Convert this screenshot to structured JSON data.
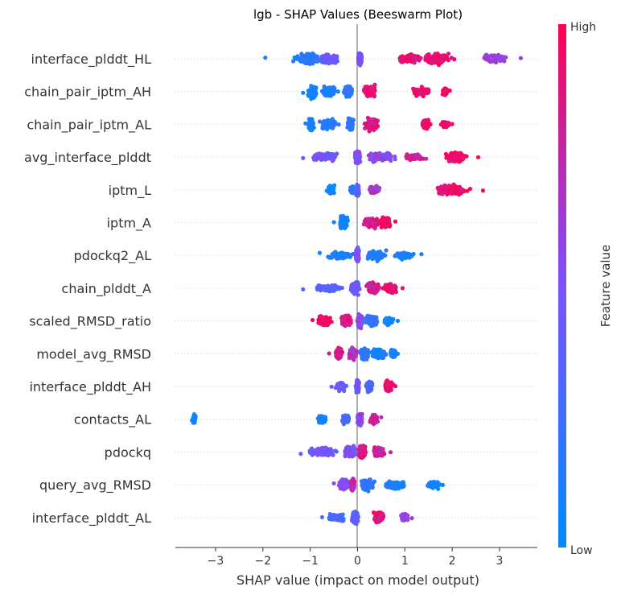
{
  "chart_data": {
    "type": "scatter",
    "subtype": "beeswarm",
    "title": "lgb - SHAP Values (Beeswarm Plot)",
    "xlabel": "SHAP value (impact on model output)",
    "ylabel": "",
    "xlim": [
      -3.85,
      3.8
    ],
    "xticks": [
      -3,
      -2,
      -1,
      0,
      1,
      2,
      3
    ],
    "grid": false,
    "colorbar": {
      "label": "Feature value",
      "high_label": "High",
      "low_label": "Low",
      "low_color": "#008bfb",
      "mid_color": "#7c52ff",
      "high_color": "#ff0052"
    },
    "features": [
      {
        "name": "interface_plddt_HL",
        "min": -1.95,
        "max": 3.45,
        "clusters": [
          [
            -1.05,
            0.35,
            0.85,
            0.15
          ],
          [
            -0.6,
            0.3,
            0.6,
            0.4
          ],
          [
            0.05,
            0.06,
            1.0,
            0.5
          ],
          [
            1.1,
            0.35,
            0.5,
            0.9
          ],
          [
            1.7,
            0.45,
            0.7,
            0.95
          ],
          [
            2.9,
            0.35,
            0.45,
            0.6
          ]
        ]
      },
      {
        "name": "chain_pair_iptm_AH",
        "min": -1.15,
        "max": 1.95,
        "clusters": [
          [
            -0.95,
            0.12,
            1.0,
            0.05
          ],
          [
            -0.6,
            0.25,
            0.6,
            0.1
          ],
          [
            -0.2,
            0.12,
            0.9,
            0.2
          ],
          [
            0.25,
            0.18,
            0.8,
            0.9
          ],
          [
            1.35,
            0.25,
            0.5,
            0.95
          ],
          [
            1.85,
            0.08,
            0.3,
            0.95
          ]
        ]
      },
      {
        "name": "chain_pair_iptm_AL",
        "min": -1.1,
        "max": 2.0,
        "clusters": [
          [
            -0.98,
            0.08,
            1.0,
            0.05
          ],
          [
            -0.6,
            0.3,
            0.6,
            0.15
          ],
          [
            -0.15,
            0.08,
            0.95,
            0.2
          ],
          [
            0.3,
            0.2,
            0.9,
            0.85
          ],
          [
            1.45,
            0.12,
            0.6,
            0.95
          ],
          [
            1.85,
            0.12,
            0.3,
            0.95
          ]
        ]
      },
      {
        "name": "avg_interface_plddt",
        "min": -1.15,
        "max": 2.55,
        "clusters": [
          [
            -0.7,
            0.4,
            0.55,
            0.45
          ],
          [
            0.0,
            0.08,
            1.0,
            0.5
          ],
          [
            0.5,
            0.4,
            0.5,
            0.55
          ],
          [
            1.2,
            0.4,
            0.3,
            0.8
          ],
          [
            2.1,
            0.35,
            0.7,
            0.95
          ]
        ]
      },
      {
        "name": "iptm_L",
        "min": -0.65,
        "max": 2.65,
        "clusters": [
          [
            -0.55,
            0.1,
            0.5,
            0.05
          ],
          [
            -0.1,
            0.08,
            0.4,
            0.1
          ],
          [
            0.0,
            0.05,
            0.8,
            0.4
          ],
          [
            0.35,
            0.18,
            0.4,
            0.7
          ],
          [
            2.0,
            0.5,
            0.75,
            0.95
          ]
        ]
      },
      {
        "name": "iptm_A",
        "min": -0.5,
        "max": 0.8,
        "clusters": [
          [
            -0.3,
            0.12,
            1.0,
            0.05
          ],
          [
            0.3,
            0.25,
            0.6,
            0.85
          ],
          [
            0.6,
            0.15,
            0.7,
            0.95
          ]
        ]
      },
      {
        "name": "pdockq2_AL",
        "min": -0.8,
        "max": 1.35,
        "clusters": [
          [
            -0.35,
            0.4,
            0.45,
            0.1
          ],
          [
            0.0,
            0.05,
            1.0,
            0.5
          ],
          [
            0.4,
            0.3,
            0.6,
            0.1
          ],
          [
            1.0,
            0.3,
            0.35,
            0.05
          ]
        ]
      },
      {
        "name": "chain_plddt_A",
        "min": -1.15,
        "max": 0.95,
        "clusters": [
          [
            -0.6,
            0.45,
            0.4,
            0.35
          ],
          [
            -0.05,
            0.15,
            0.9,
            0.45
          ],
          [
            0.35,
            0.25,
            0.7,
            0.8
          ],
          [
            0.7,
            0.2,
            0.5,
            0.9
          ]
        ]
      },
      {
        "name": "scaled_RMSD_ratio",
        "min": -0.95,
        "max": 0.85,
        "clusters": [
          [
            -0.7,
            0.2,
            0.6,
            0.95
          ],
          [
            -0.25,
            0.15,
            0.8,
            0.85
          ],
          [
            0.05,
            0.08,
            1.0,
            0.55
          ],
          [
            0.3,
            0.2,
            0.7,
            0.2
          ],
          [
            0.65,
            0.15,
            0.4,
            0.05
          ]
        ]
      },
      {
        "name": "model_avg_RMSD",
        "min": -0.6,
        "max": 0.85,
        "clusters": [
          [
            -0.4,
            0.1,
            0.75,
            0.85
          ],
          [
            -0.1,
            0.12,
            0.8,
            0.7
          ],
          [
            0.15,
            0.15,
            0.85,
            0.2
          ],
          [
            0.45,
            0.2,
            0.6,
            0.05
          ],
          [
            0.75,
            0.08,
            0.4,
            0.05
          ]
        ]
      },
      {
        "name": "interface_plddt_AH",
        "min": -0.55,
        "max": 0.8,
        "clusters": [
          [
            -0.35,
            0.15,
            0.5,
            0.4
          ],
          [
            0.0,
            0.05,
            1.0,
            0.45
          ],
          [
            0.25,
            0.1,
            0.6,
            0.3
          ],
          [
            0.65,
            0.12,
            0.7,
            0.95
          ]
        ]
      },
      {
        "name": "contacts_AL",
        "min": -3.5,
        "max": 0.5,
        "clusters": [
          [
            -3.45,
            0.04,
            0.4,
            0.05
          ],
          [
            -0.75,
            0.12,
            0.4,
            0.05
          ],
          [
            -0.25,
            0.12,
            0.5,
            0.3
          ],
          [
            0.05,
            0.08,
            0.9,
            0.55
          ],
          [
            0.35,
            0.1,
            0.6,
            0.75
          ]
        ]
      },
      {
        "name": "pdockq",
        "min": -1.2,
        "max": 0.7,
        "clusters": [
          [
            -0.75,
            0.4,
            0.55,
            0.45
          ],
          [
            -0.15,
            0.2,
            0.8,
            0.5
          ],
          [
            0.1,
            0.1,
            1.0,
            0.9
          ],
          [
            0.45,
            0.2,
            0.6,
            0.8
          ]
        ]
      },
      {
        "name": "query_avg_RMSD",
        "min": -0.5,
        "max": 1.8,
        "clusters": [
          [
            -0.3,
            0.15,
            0.7,
            0.55
          ],
          [
            -0.1,
            0.06,
            0.9,
            0.75
          ],
          [
            0.2,
            0.2,
            0.8,
            0.2
          ],
          [
            0.8,
            0.35,
            0.45,
            0.1
          ],
          [
            1.6,
            0.2,
            0.35,
            0.05
          ]
        ]
      },
      {
        "name": "interface_plddt_AL",
        "min": -0.75,
        "max": 1.15,
        "clusters": [
          [
            -0.45,
            0.25,
            0.45,
            0.3
          ],
          [
            -0.05,
            0.1,
            0.9,
            0.35
          ],
          [
            0.45,
            0.15,
            0.7,
            0.9
          ],
          [
            1.0,
            0.12,
            0.4,
            0.6
          ]
        ]
      }
    ]
  }
}
